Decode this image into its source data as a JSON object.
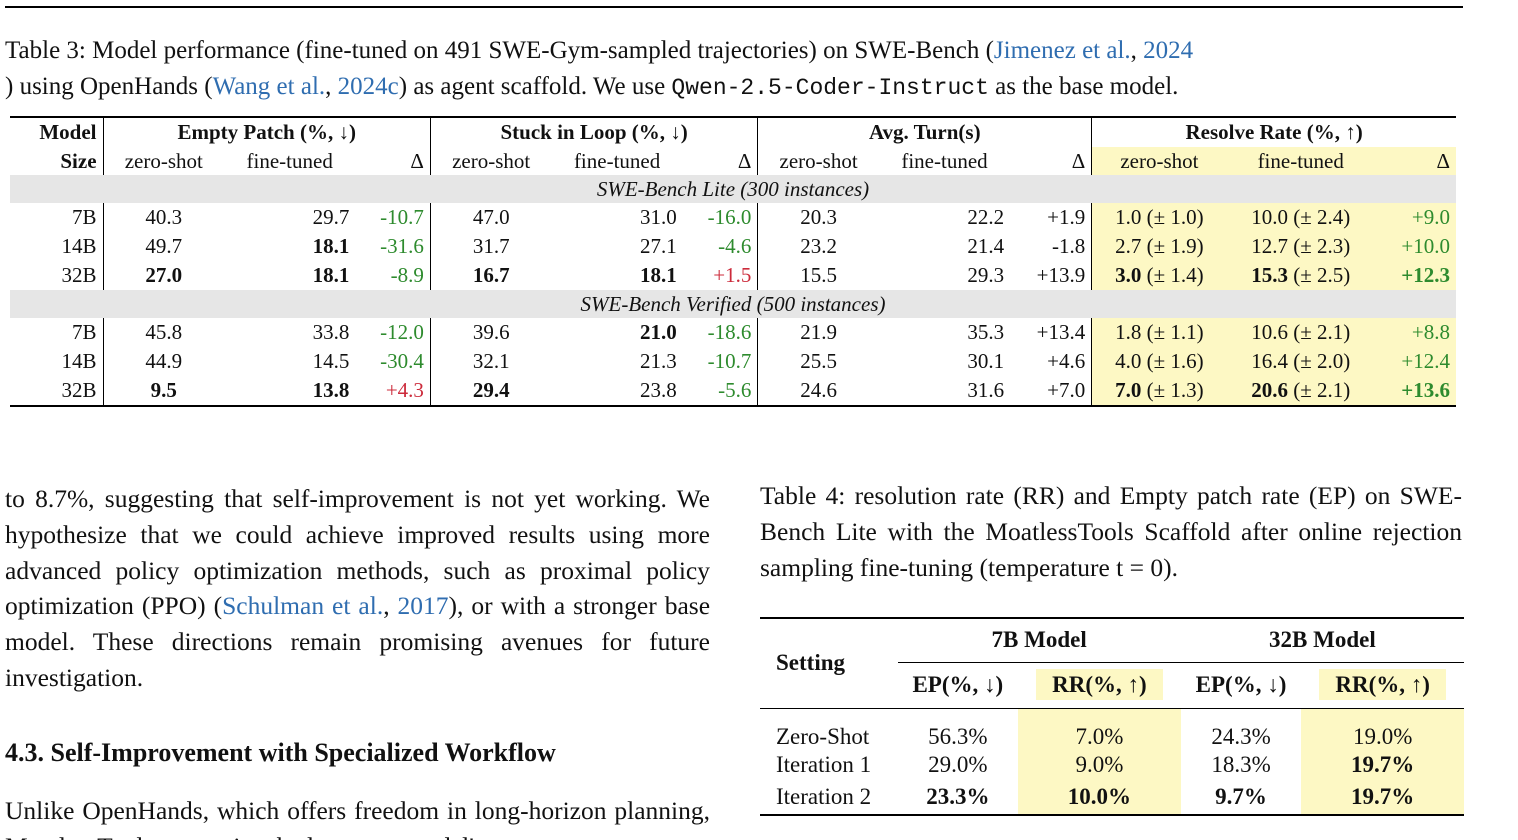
{
  "table3": {
    "caption_prefix": "Table 3: Model performance (fine-tuned on 491 SWE-Gym-sampled trajectories) on SWE-Bench (",
    "cite1_author": "Jimenez et al.",
    "cite1_sep": ", ",
    "cite1_year": "2024",
    "caption_mid": ") using OpenHands (",
    "cite2_author": "Wang et al.",
    "cite2_sep": ", ",
    "cite2_year": "2024c",
    "caption_mid2": ") as agent scaffold. We use ",
    "base_model": "Qwen-2.5-Coder-Instruct",
    "caption_suffix": " as the base model.",
    "h_model": "Model",
    "h_size": "Size",
    "h_empty": "Empty Patch (%, ↓)",
    "h_stuck": "Stuck in Loop (%, ↓)",
    "h_turns": "Avg. Turn(s)",
    "h_resolve": "Resolve Rate (%, ↑)",
    "zs": "zero-shot",
    "ft": "fine-tuned",
    "delta": "Δ",
    "sections": [
      {
        "title": "SWE-Bench Lite (300 instances)",
        "rows": [
          {
            "size": "7B",
            "ep_zs": "40.3",
            "ep_ft": "29.7",
            "ep_d": "-10.7",
            "sl_zs": "47.0",
            "sl_ft": "31.0",
            "sl_d": "-16.0",
            "t_zs": "20.3",
            "t_ft": "22.2",
            "t_d": "+1.9",
            "rr_zs": "1.0",
            "rr_zs_err": " (± 1.0)",
            "rr_ft": "10.0",
            "rr_ft_err": " (± 2.4)",
            "rr_d": "+9.0"
          },
          {
            "size": "14B",
            "ep_zs": "49.7",
            "ep_ft": "18.1",
            "ep_d": "-31.6",
            "sl_zs": "31.7",
            "sl_ft": "27.1",
            "sl_d": "-4.6",
            "t_zs": "23.2",
            "t_ft": "21.4",
            "t_d": "-1.8",
            "rr_zs": "2.7",
            "rr_zs_err": " (± 1.9)",
            "rr_ft": "12.7",
            "rr_ft_err": " (± 2.3)",
            "rr_d": "+10.0"
          },
          {
            "size": "32B",
            "ep_zs": "27.0",
            "ep_ft": "18.1",
            "ep_d": "-8.9",
            "sl_zs": "16.7",
            "sl_ft": "18.1",
            "sl_d": "+1.5",
            "t_zs": "15.5",
            "t_ft": "29.3",
            "t_d": "+13.9",
            "rr_zs": "3.0",
            "rr_zs_err": " (± 1.4)",
            "rr_ft": "15.3",
            "rr_ft_err": " (± 2.5)",
            "rr_d": "+12.3"
          }
        ]
      },
      {
        "title": "SWE-Bench Verified (500 instances)",
        "rows": [
          {
            "size": "7B",
            "ep_zs": "45.8",
            "ep_ft": "33.8",
            "ep_d": "-12.0",
            "sl_zs": "39.6",
            "sl_ft": "21.0",
            "sl_d": "-18.6",
            "t_zs": "21.9",
            "t_ft": "35.3",
            "t_d": "+13.4",
            "rr_zs": "1.8",
            "rr_zs_err": " (± 1.1)",
            "rr_ft": "10.6",
            "rr_ft_err": " (± 2.1)",
            "rr_d": "+8.8"
          },
          {
            "size": "14B",
            "ep_zs": "44.9",
            "ep_ft": "14.5",
            "ep_d": "-30.4",
            "sl_zs": "32.1",
            "sl_ft": "21.3",
            "sl_d": "-10.7",
            "t_zs": "25.5",
            "t_ft": "30.1",
            "t_d": "+4.6",
            "rr_zs": "4.0",
            "rr_zs_err": " (± 1.6)",
            "rr_ft": "16.4",
            "rr_ft_err": " (± 2.0)",
            "rr_d": "+12.4"
          },
          {
            "size": "32B",
            "ep_zs": "9.5",
            "ep_ft": "13.8",
            "ep_d": "+4.3",
            "sl_zs": "29.4",
            "sl_ft": "23.8",
            "sl_d": "-5.6",
            "t_zs": "24.6",
            "t_ft": "31.6",
            "t_d": "+7.0",
            "rr_zs": "7.0",
            "rr_zs_err": " (± 1.3)",
            "rr_ft": "20.6",
            "rr_ft_err": " (± 2.1)",
            "rr_d": "+13.6"
          }
        ]
      }
    ]
  },
  "left_text": {
    "para1_a": "to 8.7%, suggesting that self-improvement is not yet working. We hypothesize that we could achieve improved results using more advanced policy optimization methods, such as proximal policy optimization (PPO) (",
    "cite_author": "Schulman et al.",
    "cite_sep": ", ",
    "cite_year": "2017",
    "para1_b": "), or with a stronger base model. These directions remain promising avenues for future investigation.",
    "heading": "4.3. Self-Improvement with Specialized Workflow",
    "para2": "Unlike OpenHands, which offers freedom in long-horizon planning, MoatlessTools constrains the language model's"
  },
  "table4": {
    "caption": "Table 4: resolution rate (RR) and Empty patch rate (EP) on SWE-Bench Lite with the MoatlessTools Scaffold after online rejection sampling fine-tuning (temperature t = 0).",
    "h_setting": "Setting",
    "h_7b": "7B Model",
    "h_32b": "32B Model",
    "h_ep": "EP(%, ↓)",
    "h_rr": "RR(%, ↑)",
    "rows": [
      {
        "setting": "Zero-Shot",
        "ep7": "56.3%",
        "rr7": "7.0%",
        "ep32": "24.3%",
        "rr32": "19.0%"
      },
      {
        "setting": "Iteration 1",
        "ep7": "29.0%",
        "rr7": "9.0%",
        "ep32": "18.3%",
        "rr32": "19.7%"
      },
      {
        "setting": "Iteration 2",
        "ep7": "23.3%",
        "rr7": "10.0%",
        "ep32": "9.7%",
        "rr32": "19.7%"
      }
    ]
  }
}
